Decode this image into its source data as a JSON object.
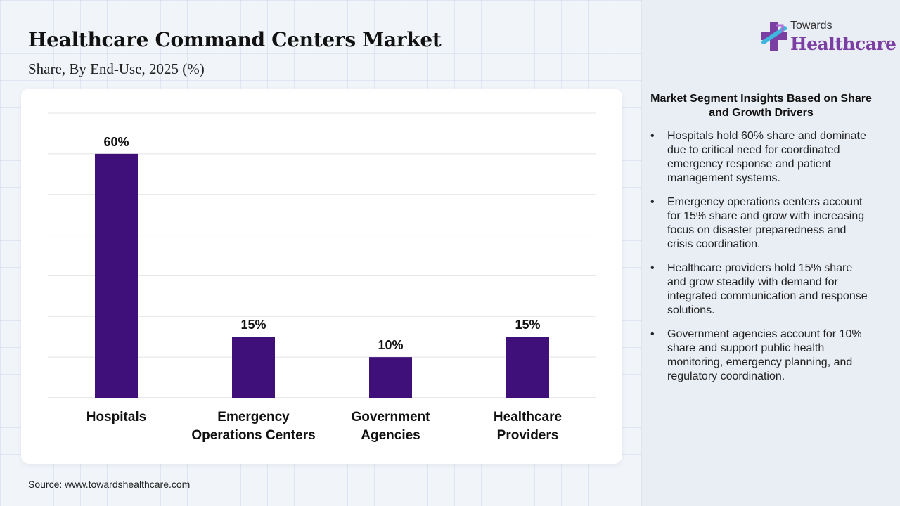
{
  "header": {
    "title": "Healthcare Command Centers Market",
    "subtitle": "Share, By End-Use, 2025 (%)"
  },
  "logo": {
    "small_text": "Towards",
    "big_text": "Healthcare",
    "icon": "plus-cross-logo-icon"
  },
  "colors": {
    "bar": "#3f0f7a",
    "logo_accent": "#7b3fa3",
    "logo_cyan": "#3fb6e0"
  },
  "chart_data": {
    "type": "bar",
    "categories": [
      "Hospitals",
      "Emergency Operations Centers",
      "Government Agencies",
      "Healthcare Providers"
    ],
    "category_lines": [
      [
        "Hospitals"
      ],
      [
        "Emergency",
        "Operations Centers"
      ],
      [
        "Government",
        "Agencies"
      ],
      [
        "Healthcare",
        "Providers"
      ]
    ],
    "values": [
      60,
      15,
      10,
      15
    ],
    "data_labels": [
      "60%",
      "15%",
      "10%",
      "15%"
    ],
    "ylim": [
      0,
      70
    ],
    "grid": true,
    "legend": "none"
  },
  "insights": {
    "title": "Market Segment Insights Based on Share and Growth Drivers",
    "items": [
      "Hospitals hold 60% share and dominate due to critical need for coordinated emergency response and patient management systems.",
      "Emergency operations centers account for 15% share and grow with increasing focus on disaster preparedness and crisis coordination.",
      "Healthcare providers hold 15% share and grow steadily with demand for integrated communication and response solutions.",
      "Government agencies account for 10% share and support public health monitoring, emergency planning, and regulatory coordination."
    ]
  },
  "source": "Source: www.towardshealthcare.com"
}
